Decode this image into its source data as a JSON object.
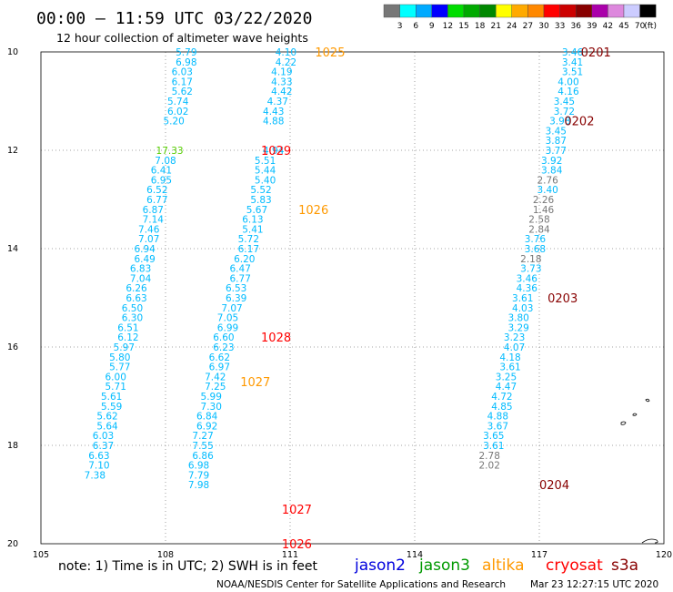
{
  "header": {
    "title": "00:00 – 11:59 UTC 03/22/2020",
    "subtitle": "12 hour collection of altimeter wave heights"
  },
  "colorbar": {
    "colors": [
      "#777777",
      "#00ffff",
      "#00aaff",
      "#0000ff",
      "#00dd00",
      "#00aa00",
      "#008800",
      "#ffff00",
      "#ffaa00",
      "#ff8800",
      "#ff0000",
      "#cc0000",
      "#880000",
      "#aa00aa",
      "#dd88dd",
      "#ccccff",
      "#000000"
    ],
    "labels": [
      "3",
      "6",
      "9",
      "12",
      "15",
      "18",
      "21",
      "24",
      "27",
      "30",
      "33",
      "36",
      "39",
      "42",
      "45",
      "70"
    ],
    "unit": "(ft)"
  },
  "legend": {
    "satellites": [
      {
        "name": "jason2",
        "color": "#0000dd"
      },
      {
        "name": "jason3",
        "color": "#009900"
      },
      {
        "name": "altika",
        "color": "#ff9900"
      },
      {
        "name": "cryosat",
        "color": "#ff0000"
      },
      {
        "name": "s3a",
        "color": "#880000"
      }
    ]
  },
  "note": "note: 1) Time is in UTC; 2) SWH is in feet",
  "footer": {
    "center": "NOAA/NESDIS Center for Satellite Applications and Research",
    "timestamp": "Mar 23 12:27:15 UTC 2020"
  },
  "chart_data": {
    "type": "scatter",
    "title": "12 hour collection of altimeter wave heights",
    "x_axis": {
      "label": "",
      "range": [
        105,
        120
      ],
      "ticks": [
        105,
        108,
        111,
        114,
        117,
        120
      ]
    },
    "y_axis": {
      "label": "",
      "range": [
        -20,
        -10
      ],
      "ticks": [
        -10,
        -12,
        -14,
        -16,
        -18,
        -20
      ],
      "tick_labels": [
        "10",
        "12",
        "14",
        "16",
        "18",
        "20"
      ]
    },
    "grid": true,
    "legend_placement": "bottom",
    "times": [
      {
        "text": "1025",
        "x": 111.6,
        "y": -10.0,
        "color": "#ff9900"
      },
      {
        "text": "1029",
        "x": 110.3,
        "y": -12.0,
        "color": "#ff0000"
      },
      {
        "text": "1026",
        "x": 111.2,
        "y": -13.2,
        "color": "#ff9900"
      },
      {
        "text": "1028",
        "x": 110.3,
        "y": -15.8,
        "color": "#ff0000"
      },
      {
        "text": "1027",
        "x": 109.8,
        "y": -16.7,
        "color": "#ff9900"
      },
      {
        "text": "1027",
        "x": 110.8,
        "y": -19.3,
        "color": "#ff0000"
      },
      {
        "text": "1026",
        "x": 110.8,
        "y": -20.0,
        "color": "#ff0000"
      },
      {
        "text": "0201",
        "x": 118.0,
        "y": -10.0,
        "color": "#880000"
      },
      {
        "text": "0202",
        "x": 117.6,
        "y": -11.4,
        "color": "#880000"
      },
      {
        "text": "0203",
        "x": 117.2,
        "y": -15.0,
        "color": "#880000"
      },
      {
        "text": "0204",
        "x": 117.0,
        "y": -18.8,
        "color": "#880000"
      }
    ],
    "series": [
      {
        "points": [
          {
            "x": 110.9,
            "y": -10.0,
            "v": "4.10",
            "c": "#00bbff"
          },
          {
            "x": 110.9,
            "y": -10.2,
            "v": "4.22",
            "c": "#00bbff"
          },
          {
            "x": 110.8,
            "y": -10.4,
            "v": "4.19",
            "c": "#00bbff"
          },
          {
            "x": 110.8,
            "y": -10.6,
            "v": "4.33",
            "c": "#00bbff"
          },
          {
            "x": 110.8,
            "y": -10.8,
            "v": "4.42",
            "c": "#00bbff"
          },
          {
            "x": 110.7,
            "y": -11.0,
            "v": "4.37",
            "c": "#00bbff"
          },
          {
            "x": 110.6,
            "y": -11.2,
            "v": "4.43",
            "c": "#00bbff"
          },
          {
            "x": 110.6,
            "y": -11.4,
            "v": "4.88",
            "c": "#00bbff"
          },
          {
            "x": 110.6,
            "y": -12.0,
            "v": "4.94",
            "c": "#00bbff"
          },
          {
            "x": 110.4,
            "y": -12.2,
            "v": "5.51",
            "c": "#00bbff"
          },
          {
            "x": 110.4,
            "y": -12.4,
            "v": "5.44",
            "c": "#00bbff"
          },
          {
            "x": 110.4,
            "y": -12.6,
            "v": "5.40",
            "c": "#00bbff"
          },
          {
            "x": 110.3,
            "y": -12.8,
            "v": "5.52",
            "c": "#00bbff"
          },
          {
            "x": 110.3,
            "y": -13.0,
            "v": "5.83",
            "c": "#00bbff"
          },
          {
            "x": 110.2,
            "y": -13.2,
            "v": "5.67",
            "c": "#00bbff"
          },
          {
            "x": 110.1,
            "y": -13.4,
            "v": "6.13",
            "c": "#00bbff"
          },
          {
            "x": 110.1,
            "y": -13.6,
            "v": "5.41",
            "c": "#00bbff"
          },
          {
            "x": 110.0,
            "y": -13.8,
            "v": "5.72",
            "c": "#00bbff"
          },
          {
            "x": 110.0,
            "y": -14.0,
            "v": "6.17",
            "c": "#00bbff"
          },
          {
            "x": 109.9,
            "y": -14.2,
            "v": "6.20",
            "c": "#00bbff"
          },
          {
            "x": 109.8,
            "y": -14.4,
            "v": "6.47",
            "c": "#00bbff"
          },
          {
            "x": 109.8,
            "y": -14.6,
            "v": "6.77",
            "c": "#00bbff"
          },
          {
            "x": 109.7,
            "y": -14.8,
            "v": "6.53",
            "c": "#00bbff"
          },
          {
            "x": 109.7,
            "y": -15.0,
            "v": "6.39",
            "c": "#00bbff"
          },
          {
            "x": 109.6,
            "y": -15.2,
            "v": "7.07",
            "c": "#00bbff"
          },
          {
            "x": 109.5,
            "y": -15.4,
            "v": "7.05",
            "c": "#00bbff"
          },
          {
            "x": 109.5,
            "y": -15.6,
            "v": "6.99",
            "c": "#00bbff"
          },
          {
            "x": 109.4,
            "y": -15.8,
            "v": "6.60",
            "c": "#00bbff"
          },
          {
            "x": 109.4,
            "y": -16.0,
            "v": "6.23",
            "c": "#00bbff"
          },
          {
            "x": 109.3,
            "y": -16.2,
            "v": "6.62",
            "c": "#00bbff"
          },
          {
            "x": 109.3,
            "y": -16.4,
            "v": "6.97",
            "c": "#00bbff"
          },
          {
            "x": 109.2,
            "y": -16.6,
            "v": "7.42",
            "c": "#00bbff"
          },
          {
            "x": 109.2,
            "y": -16.8,
            "v": "7.25",
            "c": "#00bbff"
          },
          {
            "x": 109.1,
            "y": -17.0,
            "v": "5.99",
            "c": "#00bbff"
          },
          {
            "x": 109.1,
            "y": -17.2,
            "v": "7.30",
            "c": "#00bbff"
          },
          {
            "x": 109.0,
            "y": -17.4,
            "v": "6.84",
            "c": "#00bbff"
          },
          {
            "x": 109.0,
            "y": -17.6,
            "v": "6.92",
            "c": "#00bbff"
          },
          {
            "x": 108.9,
            "y": -17.8,
            "v": "7.27",
            "c": "#00bbff"
          },
          {
            "x": 108.9,
            "y": -18.0,
            "v": "7.55",
            "c": "#00bbff"
          },
          {
            "x": 108.9,
            "y": -18.2,
            "v": "6.86",
            "c": "#00bbff"
          },
          {
            "x": 108.8,
            "y": -18.4,
            "v": "6.98",
            "c": "#00bbff"
          },
          {
            "x": 108.8,
            "y": -18.6,
            "v": "7.79",
            "c": "#00bbff"
          },
          {
            "x": 108.8,
            "y": -18.8,
            "v": "7.98",
            "c": "#00bbff"
          }
        ]
      },
      {
        "points": [
          {
            "x": 108.5,
            "y": -10.0,
            "v": "5.79",
            "c": "#00bbff"
          },
          {
            "x": 108.5,
            "y": -10.2,
            "v": "6.98",
            "c": "#00bbff"
          },
          {
            "x": 108.4,
            "y": -10.4,
            "v": "6.03",
            "c": "#00bbff"
          },
          {
            "x": 108.4,
            "y": -10.6,
            "v": "6.17",
            "c": "#00bbff"
          },
          {
            "x": 108.4,
            "y": -10.8,
            "v": "5.62",
            "c": "#00bbff"
          },
          {
            "x": 108.3,
            "y": -11.0,
            "v": "5.74",
            "c": "#00bbff"
          },
          {
            "x": 108.3,
            "y": -11.2,
            "v": "6.02",
            "c": "#00bbff"
          },
          {
            "x": 108.2,
            "y": -11.4,
            "v": "5.20",
            "c": "#00bbff"
          },
          {
            "x": 108.1,
            "y": -12.0,
            "v": "17.33",
            "c": "#55cc00"
          },
          {
            "x": 108.0,
            "y": -12.2,
            "v": "7.08",
            "c": "#00bbff"
          },
          {
            "x": 107.9,
            "y": -12.4,
            "v": "6.41",
            "c": "#00bbff"
          },
          {
            "x": 107.9,
            "y": -12.6,
            "v": "6.95",
            "c": "#00bbff"
          },
          {
            "x": 107.8,
            "y": -12.8,
            "v": "6.52",
            "c": "#00bbff"
          },
          {
            "x": 107.8,
            "y": -13.0,
            "v": "6.77",
            "c": "#00bbff"
          },
          {
            "x": 107.7,
            "y": -13.2,
            "v": "6.87",
            "c": "#00bbff"
          },
          {
            "x": 107.7,
            "y": -13.4,
            "v": "7.14",
            "c": "#00bbff"
          },
          {
            "x": 107.6,
            "y": -13.6,
            "v": "7.46",
            "c": "#00bbff"
          },
          {
            "x": 107.6,
            "y": -13.8,
            "v": "7.07",
            "c": "#00bbff"
          },
          {
            "x": 107.5,
            "y": -14.0,
            "v": "6.94",
            "c": "#00bbff"
          },
          {
            "x": 107.5,
            "y": -14.2,
            "v": "6.49",
            "c": "#00bbff"
          },
          {
            "x": 107.4,
            "y": -14.4,
            "v": "6.83",
            "c": "#00bbff"
          },
          {
            "x": 107.4,
            "y": -14.6,
            "v": "7.04",
            "c": "#00bbff"
          },
          {
            "x": 107.3,
            "y": -14.8,
            "v": "6.26",
            "c": "#00bbff"
          },
          {
            "x": 107.3,
            "y": -15.0,
            "v": "6.63",
            "c": "#00bbff"
          },
          {
            "x": 107.2,
            "y": -15.2,
            "v": "6.50",
            "c": "#00bbff"
          },
          {
            "x": 107.2,
            "y": -15.4,
            "v": "6.30",
            "c": "#00bbff"
          },
          {
            "x": 107.1,
            "y": -15.6,
            "v": "6.51",
            "c": "#00bbff"
          },
          {
            "x": 107.1,
            "y": -15.8,
            "v": "6.12",
            "c": "#00bbff"
          },
          {
            "x": 107.0,
            "y": -16.0,
            "v": "5.97",
            "c": "#00bbff"
          },
          {
            "x": 106.9,
            "y": -16.2,
            "v": "5.80",
            "c": "#00bbff"
          },
          {
            "x": 106.9,
            "y": -16.4,
            "v": "5.77",
            "c": "#00bbff"
          },
          {
            "x": 106.8,
            "y": -16.6,
            "v": "6.00",
            "c": "#00bbff"
          },
          {
            "x": 106.8,
            "y": -16.8,
            "v": "5.71",
            "c": "#00bbff"
          },
          {
            "x": 106.7,
            "y": -17.0,
            "v": "5.61",
            "c": "#00bbff"
          },
          {
            "x": 106.7,
            "y": -17.2,
            "v": "5.59",
            "c": "#00bbff"
          },
          {
            "x": 106.6,
            "y": -17.4,
            "v": "5.62",
            "c": "#00bbff"
          },
          {
            "x": 106.6,
            "y": -17.6,
            "v": "5.64",
            "c": "#00bbff"
          },
          {
            "x": 106.5,
            "y": -17.8,
            "v": "6.03",
            "c": "#00bbff"
          },
          {
            "x": 106.5,
            "y": -18.0,
            "v": "6.37",
            "c": "#00bbff"
          },
          {
            "x": 106.4,
            "y": -18.2,
            "v": "6.63",
            "c": "#00bbff"
          },
          {
            "x": 106.4,
            "y": -18.4,
            "v": "7.10",
            "c": "#00bbff"
          },
          {
            "x": 106.3,
            "y": -18.6,
            "v": "7.38",
            "c": "#00bbff"
          }
        ]
      },
      {
        "points": [
          {
            "x": 117.8,
            "y": -10.0,
            "v": "3.46",
            "c": "#00bbff"
          },
          {
            "x": 117.8,
            "y": -10.2,
            "v": "3.41",
            "c": "#00bbff"
          },
          {
            "x": 117.8,
            "y": -10.4,
            "v": "3.51",
            "c": "#00bbff"
          },
          {
            "x": 117.7,
            "y": -10.6,
            "v": "4.00",
            "c": "#00bbff"
          },
          {
            "x": 117.7,
            "y": -10.8,
            "v": "4.16",
            "c": "#00bbff"
          },
          {
            "x": 117.6,
            "y": -11.0,
            "v": "3.45",
            "c": "#00bbff"
          },
          {
            "x": 117.6,
            "y": -11.2,
            "v": "3.72",
            "c": "#00bbff"
          },
          {
            "x": 117.5,
            "y": -11.4,
            "v": "3.98",
            "c": "#00bbff"
          },
          {
            "x": 117.4,
            "y": -11.6,
            "v": "3.45",
            "c": "#00bbff"
          },
          {
            "x": 117.4,
            "y": -11.8,
            "v": "3.87",
            "c": "#00bbff"
          },
          {
            "x": 117.4,
            "y": -12.0,
            "v": "3.77",
            "c": "#00bbff"
          },
          {
            "x": 117.3,
            "y": -12.2,
            "v": "3.92",
            "c": "#00bbff"
          },
          {
            "x": 117.3,
            "y": -12.4,
            "v": "3.84",
            "c": "#00bbff"
          },
          {
            "x": 117.2,
            "y": -12.6,
            "v": "2.76",
            "c": "#777777"
          },
          {
            "x": 117.2,
            "y": -12.8,
            "v": "3.40",
            "c": "#00bbff"
          },
          {
            "x": 117.1,
            "y": -13.0,
            "v": "2.26",
            "c": "#777777"
          },
          {
            "x": 117.1,
            "y": -13.2,
            "v": "1.46",
            "c": "#777777"
          },
          {
            "x": 117.0,
            "y": -13.4,
            "v": "2.58",
            "c": "#777777"
          },
          {
            "x": 117.0,
            "y": -13.6,
            "v": "2.84",
            "c": "#777777"
          },
          {
            "x": 116.9,
            "y": -13.8,
            "v": "3.76",
            "c": "#00bbff"
          },
          {
            "x": 116.9,
            "y": -14.0,
            "v": "3.68",
            "c": "#00bbff"
          },
          {
            "x": 116.8,
            "y": -14.2,
            "v": "2.18",
            "c": "#777777"
          },
          {
            "x": 116.8,
            "y": -14.4,
            "v": "3.73",
            "c": "#00bbff"
          },
          {
            "x": 116.7,
            "y": -14.6,
            "v": "3.46",
            "c": "#00bbff"
          },
          {
            "x": 116.7,
            "y": -14.8,
            "v": "4.36",
            "c": "#00bbff"
          },
          {
            "x": 116.6,
            "y": -15.0,
            "v": "3.61",
            "c": "#00bbff"
          },
          {
            "x": 116.6,
            "y": -15.2,
            "v": "4.03",
            "c": "#00bbff"
          },
          {
            "x": 116.5,
            "y": -15.4,
            "v": "3.80",
            "c": "#00bbff"
          },
          {
            "x": 116.5,
            "y": -15.6,
            "v": "3.29",
            "c": "#00bbff"
          },
          {
            "x": 116.4,
            "y": -15.8,
            "v": "3.23",
            "c": "#00bbff"
          },
          {
            "x": 116.4,
            "y": -16.0,
            "v": "4.07",
            "c": "#00bbff"
          },
          {
            "x": 116.3,
            "y": -16.2,
            "v": "4.18",
            "c": "#00bbff"
          },
          {
            "x": 116.3,
            "y": -16.4,
            "v": "3.61",
            "c": "#00bbff"
          },
          {
            "x": 116.2,
            "y": -16.6,
            "v": "3.25",
            "c": "#00bbff"
          },
          {
            "x": 116.2,
            "y": -16.8,
            "v": "4.47",
            "c": "#00bbff"
          },
          {
            "x": 116.1,
            "y": -17.0,
            "v": "4.72",
            "c": "#00bbff"
          },
          {
            "x": 116.1,
            "y": -17.2,
            "v": "4.85",
            "c": "#00bbff"
          },
          {
            "x": 116.0,
            "y": -17.4,
            "v": "4.88",
            "c": "#00bbff"
          },
          {
            "x": 116.0,
            "y": -17.6,
            "v": "3.67",
            "c": "#00bbff"
          },
          {
            "x": 115.9,
            "y": -17.8,
            "v": "3.65",
            "c": "#00bbff"
          },
          {
            "x": 115.9,
            "y": -18.0,
            "v": "3.61",
            "c": "#00bbff"
          },
          {
            "x": 115.8,
            "y": -18.2,
            "v": "2.78",
            "c": "#777777"
          },
          {
            "x": 115.8,
            "y": -18.4,
            "v": "2.02",
            "c": "#777777"
          }
        ]
      }
    ]
  }
}
